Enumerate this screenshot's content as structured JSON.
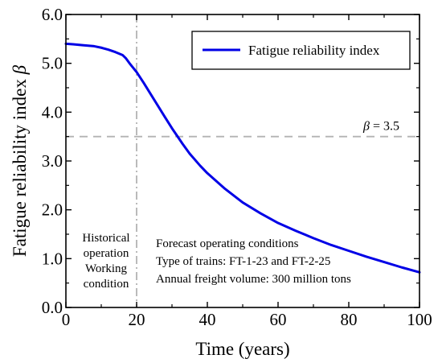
{
  "chart_data": {
    "type": "line",
    "xlabel": "Time (years)",
    "ylabel": "Fatigue reliability index β",
    "xlim": [
      0,
      100
    ],
    "ylim": [
      0.0,
      6.0
    ],
    "xticks": [
      "0",
      "20",
      "40",
      "60",
      "80",
      "100"
    ],
    "yticks": [
      "0.0",
      "1.0",
      "2.0",
      "3.0",
      "4.0",
      "5.0",
      "6.0"
    ],
    "grid": false,
    "legend_position": "top-right",
    "series": [
      {
        "name": "Fatigue reliability index",
        "color": "#0000e6",
        "x": [
          0,
          2,
          5,
          8,
          10,
          12,
          14,
          16,
          17,
          18,
          20,
          22,
          25,
          28,
          30,
          33,
          35,
          38,
          40,
          45,
          50,
          55,
          60,
          65,
          70,
          75,
          80,
          85,
          90,
          95,
          100
        ],
        "y": [
          5.4,
          5.39,
          5.37,
          5.35,
          5.32,
          5.28,
          5.23,
          5.17,
          5.1,
          5.0,
          4.82,
          4.6,
          4.25,
          3.9,
          3.67,
          3.35,
          3.15,
          2.9,
          2.75,
          2.43,
          2.15,
          1.93,
          1.73,
          1.57,
          1.42,
          1.28,
          1.16,
          1.04,
          0.93,
          0.82,
          0.72
        ]
      }
    ],
    "reference_lines": {
      "horizontal": {
        "y": 3.5,
        "label": "β = 3.5",
        "color": "#b3b3b3"
      },
      "vertical": {
        "x": 20,
        "color": "#b3b3b3"
      }
    },
    "annotations": {
      "historical": [
        "Historical",
        "operation",
        "Working",
        "condition"
      ],
      "forecast": [
        "Forecast operating conditions",
        "Type of trains: FT-1-23 and FT-2-25",
        "Annual freight volume: 300 million tons"
      ]
    }
  }
}
